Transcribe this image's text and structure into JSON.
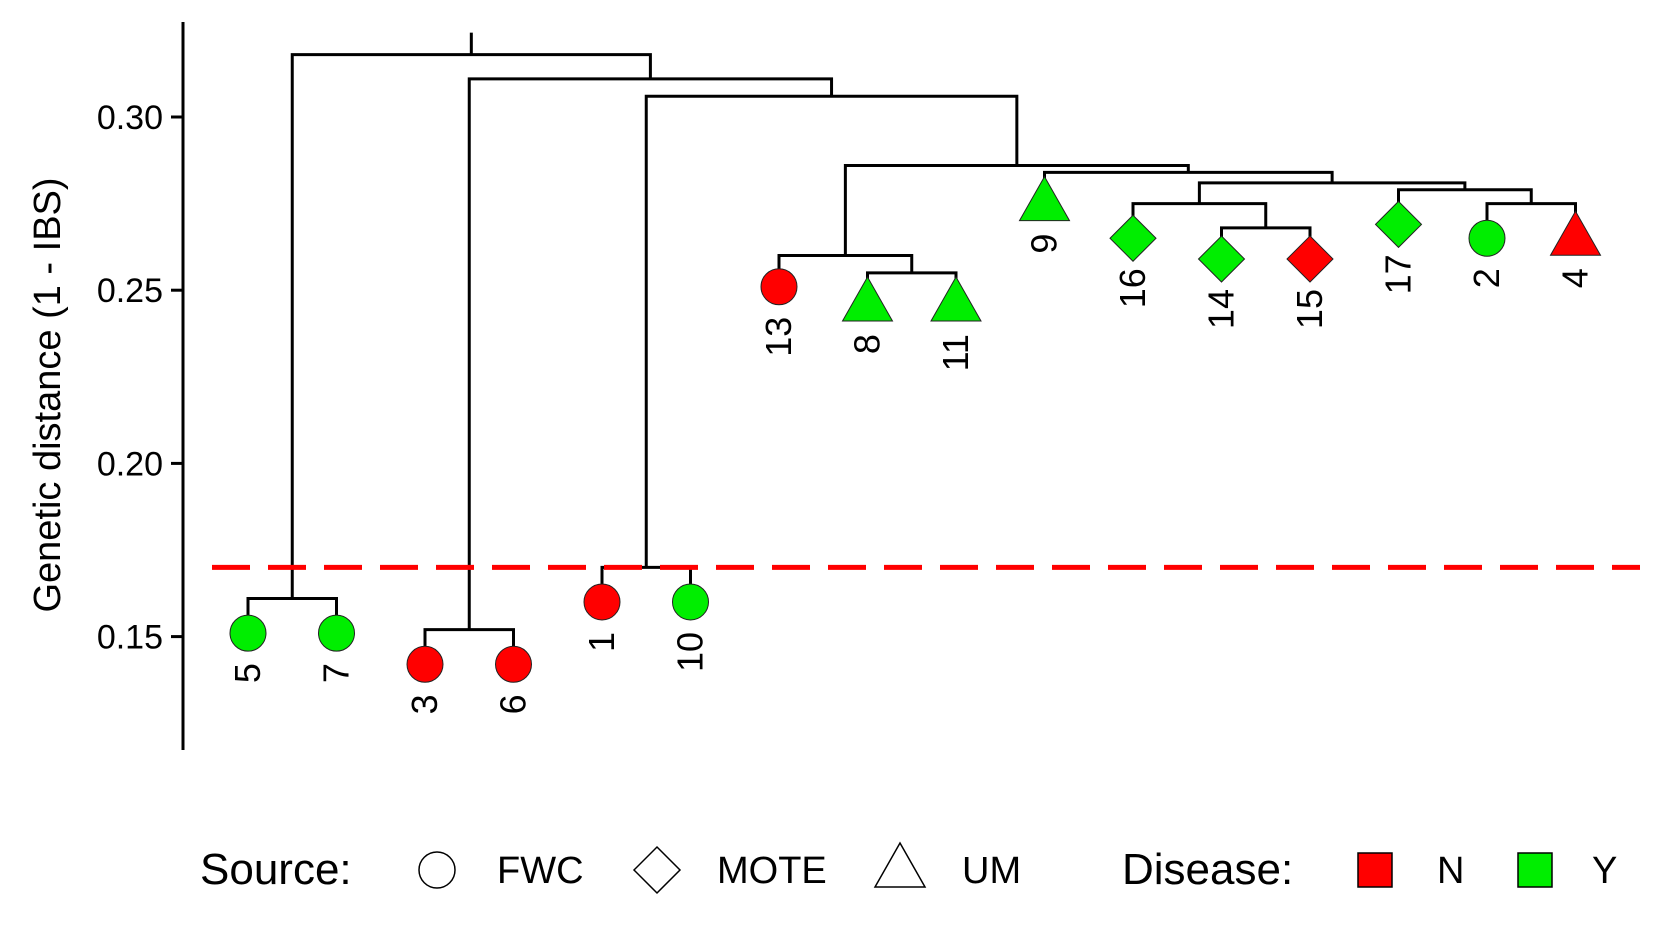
{
  "chart_data": {
    "type": "dendrogram",
    "ylabel": "Genetic distance (1 - IBS)",
    "ylim": [
      0.12,
      0.325
    ],
    "yticks": [
      "0.15",
      "0.20",
      "0.25",
      "0.30"
    ],
    "cutoff": 0.17,
    "cutoff_color": "#ff0000",
    "leaves": [
      {
        "label": "5",
        "source": "FWC",
        "disease": "Y",
        "height": 0.151
      },
      {
        "label": "7",
        "source": "FWC",
        "disease": "Y",
        "height": 0.151
      },
      {
        "label": "3",
        "source": "FWC",
        "disease": "N",
        "height": 0.142
      },
      {
        "label": "6",
        "source": "FWC",
        "disease": "N",
        "height": 0.142
      },
      {
        "label": "1",
        "source": "FWC",
        "disease": "N",
        "height": 0.16
      },
      {
        "label": "10",
        "source": "FWC",
        "disease": "Y",
        "height": 0.16
      },
      {
        "label": "13",
        "source": "FWC",
        "disease": "N",
        "height": 0.251
      },
      {
        "label": "8",
        "source": "UM",
        "disease": "Y",
        "height": 0.246
      },
      {
        "label": "11",
        "source": "UM",
        "disease": "Y",
        "height": 0.246
      },
      {
        "label": "9",
        "source": "UM",
        "disease": "Y",
        "height": 0.275
      },
      {
        "label": "16",
        "source": "MOTE",
        "disease": "Y",
        "height": 0.265
      },
      {
        "label": "14",
        "source": "MOTE",
        "disease": "Y",
        "height": 0.259
      },
      {
        "label": "15",
        "source": "MOTE",
        "disease": "N",
        "height": 0.259
      },
      {
        "label": "17",
        "source": "MOTE",
        "disease": "Y",
        "height": 0.269
      },
      {
        "label": "2",
        "source": "FWC",
        "disease": "Y",
        "height": 0.265
      },
      {
        "label": "4",
        "source": "UM",
        "disease": "N",
        "height": 0.265
      }
    ],
    "merges": [
      {
        "a": [
          "leaf",
          0
        ],
        "b": [
          "leaf",
          1
        ],
        "height": 0.161
      },
      {
        "a": [
          "leaf",
          2
        ],
        "b": [
          "leaf",
          3
        ],
        "height": 0.152
      },
      {
        "a": [
          "leaf",
          4
        ],
        "b": [
          "leaf",
          5
        ],
        "height": 0.17
      },
      {
        "a": [
          "leaf",
          7
        ],
        "b": [
          "leaf",
          8
        ],
        "height": 0.255
      },
      {
        "a": [
          "leaf",
          6
        ],
        "b": [
          "node",
          3
        ],
        "height": 0.26
      },
      {
        "a": [
          "leaf",
          11
        ],
        "b": [
          "leaf",
          12
        ],
        "height": 0.268
      },
      {
        "a": [
          "leaf",
          10
        ],
        "b": [
          "node",
          5
        ],
        "height": 0.275
      },
      {
        "a": [
          "leaf",
          14
        ],
        "b": [
          "leaf",
          15
        ],
        "height": 0.275
      },
      {
        "a": [
          "leaf",
          13
        ],
        "b": [
          "node",
          7
        ],
        "height": 0.279
      },
      {
        "a": [
          "node",
          6
        ],
        "b": [
          "node",
          8
        ],
        "height": 0.281
      },
      {
        "a": [
          "leaf",
          9
        ],
        "b": [
          "node",
          9
        ],
        "height": 0.284
      },
      {
        "a": [
          "node",
          4
        ],
        "b": [
          "node",
          10
        ],
        "height": 0.286
      },
      {
        "a": [
          "node",
          2
        ],
        "b": [
          "node",
          11
        ],
        "height": 0.306
      },
      {
        "a": [
          "node",
          1
        ],
        "b": [
          "node",
          12
        ],
        "height": 0.311
      },
      {
        "a": [
          "node",
          0
        ],
        "b": [
          "node",
          13
        ],
        "height": 0.318
      }
    ],
    "legend": {
      "position": "bottom",
      "source_title": "Source:",
      "source_items": [
        {
          "label": "FWC",
          "shape": "circle"
        },
        {
          "label": "MOTE",
          "shape": "diamond"
        },
        {
          "label": "UM",
          "shape": "triangle"
        }
      ],
      "disease_title": "Disease:",
      "disease_items": [
        {
          "label": "N",
          "color": "#ff0000"
        },
        {
          "label": "Y",
          "color": "#00ee00"
        }
      ]
    }
  }
}
